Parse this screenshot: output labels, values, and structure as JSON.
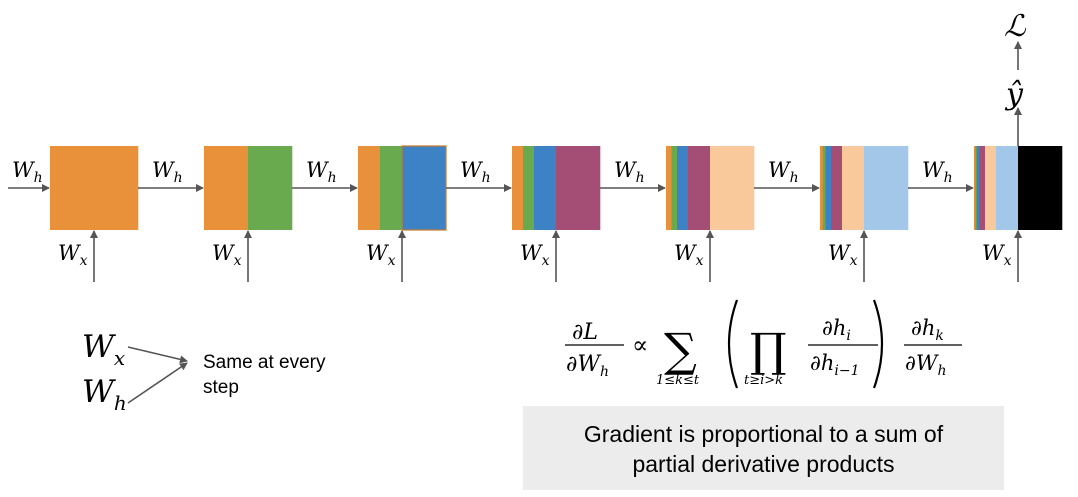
{
  "labels": {
    "w_h": "W",
    "w_h_sub": "h",
    "w_x": "W",
    "w_x_sub": "x",
    "y_hat": "ŷ",
    "loss": "ℒ"
  },
  "shared_weights": {
    "wx": "W",
    "wx_sub": "x",
    "wh": "W",
    "wh_sub": "h",
    "text_line1": "Same at every",
    "text_line2": "step"
  },
  "formula": {
    "lhs_num": "∂L",
    "lhs_den": "∂W",
    "lhs_den_sub": "h",
    "propto": "∝",
    "sum": "∑",
    "sum_limits": "1≤k≤t",
    "prod": "∏",
    "prod_limits": "t≥i>k",
    "frac1_num": "∂h",
    "frac1_num_sub": "i",
    "frac1_den": "∂h",
    "frac1_den_sub": "i−1",
    "frac2_num": "∂h",
    "frac2_num_sub": "k",
    "frac2_den": "∂W",
    "frac2_den_sub": "h"
  },
  "note": {
    "line1": "Gradient is proportional to a sum of",
    "line2": "partial derivative products"
  },
  "colors": {
    "orange": "#e8903a",
    "green": "#6aaa4e",
    "blue": "#3c82c4",
    "purple": "#a44e76",
    "peach": "#f9c99b",
    "lightblue": "#a3c7e8",
    "black": "#000000",
    "arrow": "#555555",
    "note_bg": "#ececec"
  },
  "cells": [
    {
      "colors": [
        "orange"
      ],
      "fractions": [
        1.0
      ]
    },
    {
      "colors": [
        "orange",
        "green"
      ],
      "fractions": [
        0.5,
        0.5
      ]
    },
    {
      "colors": [
        "orange",
        "green",
        "blue"
      ],
      "fractions": [
        0.25,
        0.25,
        0.5
      ]
    },
    {
      "colors": [
        "orange",
        "green",
        "blue",
        "purple"
      ],
      "fractions": [
        0.125,
        0.125,
        0.25,
        0.5
      ]
    },
    {
      "colors": [
        "orange",
        "green",
        "blue",
        "purple",
        "peach"
      ],
      "fractions": [
        0.0625,
        0.0625,
        0.125,
        0.25,
        0.5
      ]
    },
    {
      "colors": [
        "orange",
        "green",
        "blue",
        "purple",
        "peach",
        "lightblue"
      ],
      "fractions": [
        0.03125,
        0.03125,
        0.0625,
        0.125,
        0.25,
        0.5
      ]
    },
    {
      "colors": [
        "orange",
        "green",
        "blue",
        "purple",
        "peach",
        "lightblue",
        "black"
      ],
      "fractions": [
        0.015625,
        0.015625,
        0.03125,
        0.0625,
        0.125,
        0.25,
        0.5
      ]
    }
  ]
}
